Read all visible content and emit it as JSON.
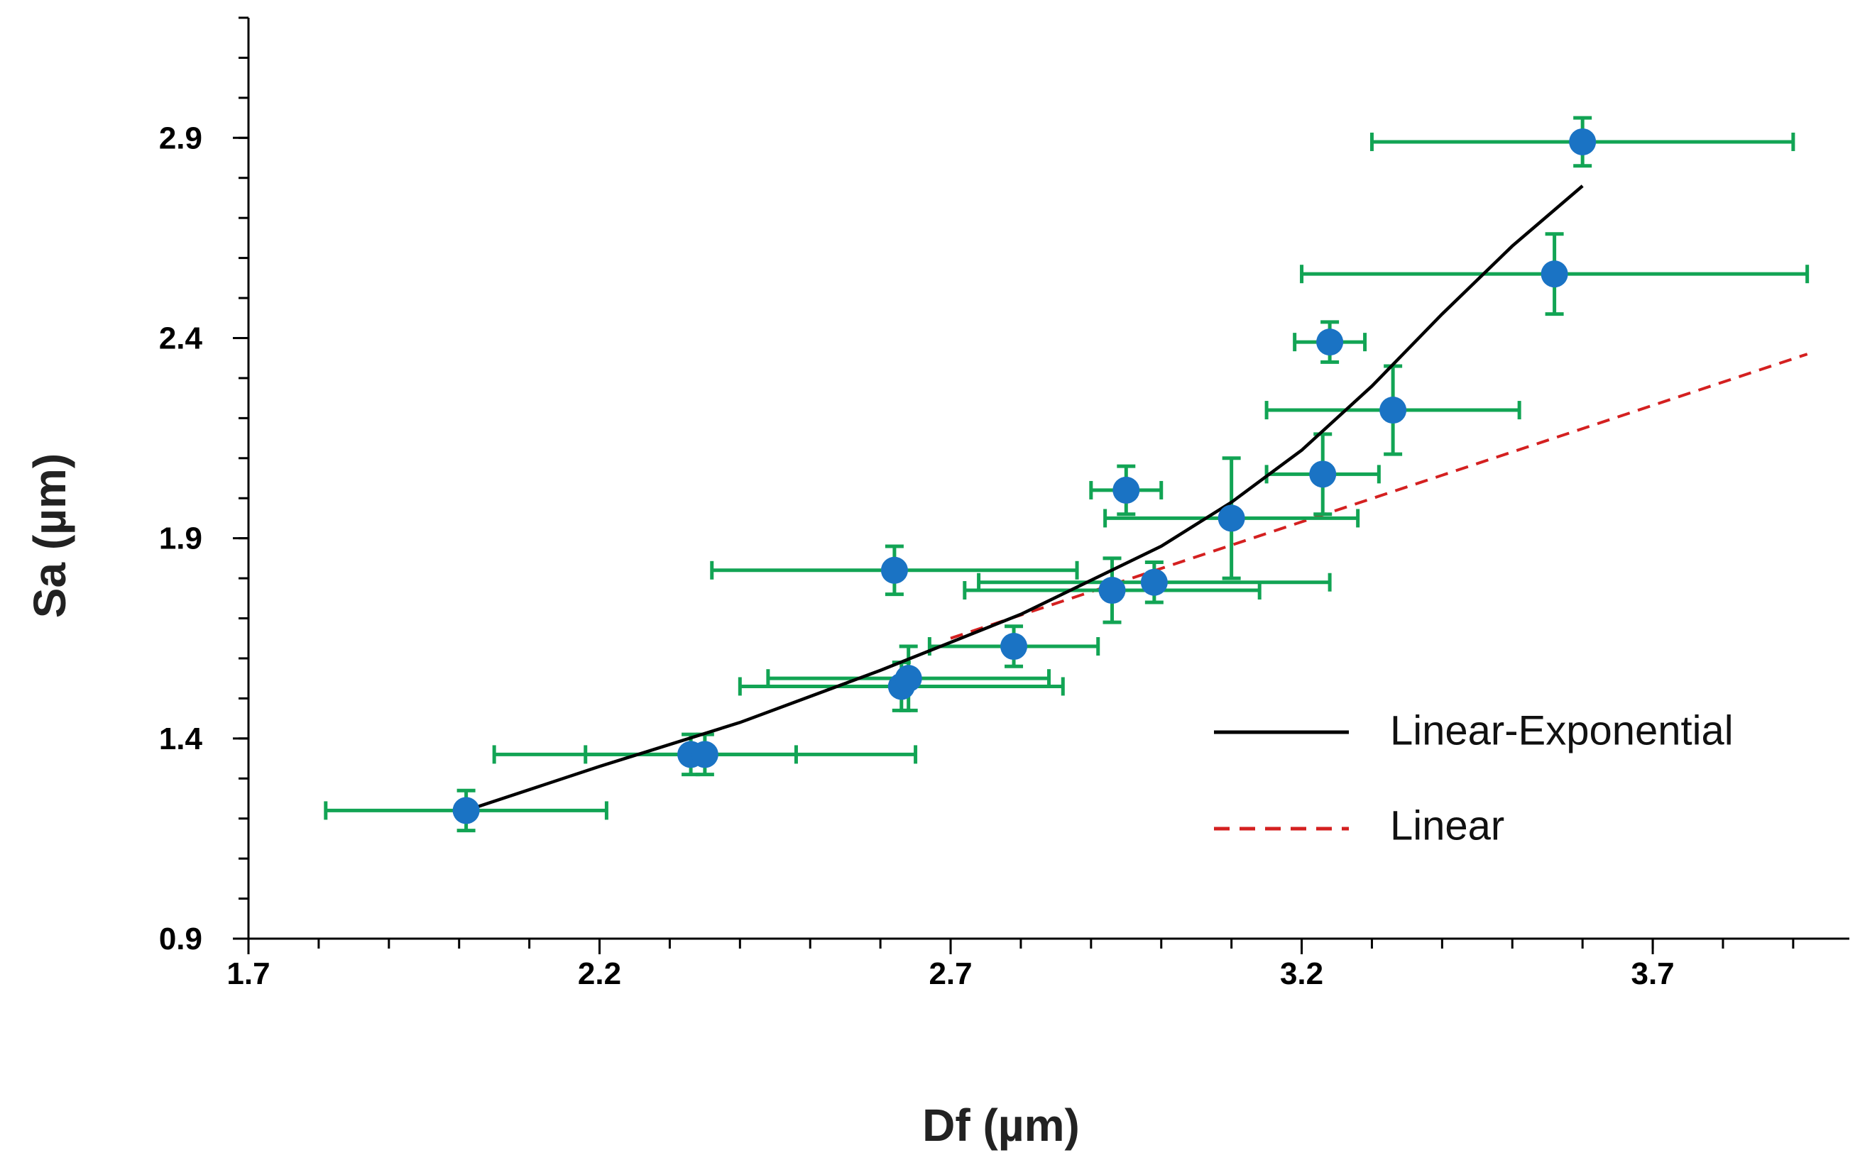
{
  "chart_data": {
    "type": "scatter",
    "title": "",
    "xlabel": "Df (µm)",
    "ylabel": "Sa (µm)",
    "xlim": [
      1.7,
      3.98
    ],
    "ylim": [
      0.9,
      3.2
    ],
    "x_ticks": [
      1.7,
      2.2,
      2.7,
      3.2,
      3.7
    ],
    "x_tick_labels": [
      "1.7",
      "2.2",
      "2.7",
      "3.2",
      "3.7"
    ],
    "y_ticks": [
      0.9,
      1.4,
      1.9,
      2.4,
      2.9
    ],
    "y_tick_labels": [
      "0.9",
      "1.4",
      "1.9",
      "2.4",
      "2.9"
    ],
    "x_minor_step": 0.1,
    "y_minor_step": 0.1,
    "grid": false,
    "legend_position": "bottom-right",
    "colors": {
      "points": "#1a73c4",
      "error_bars": "#12a454",
      "linear_exponential": "#000000",
      "linear": "#d42020"
    },
    "points": [
      {
        "x": 2.01,
        "y": 1.22,
        "xerr": 0.2,
        "yerr": 0.05
      },
      {
        "x": 2.33,
        "y": 1.36,
        "xerr": 0.15,
        "yerr": 0.05
      },
      {
        "x": 2.35,
        "y": 1.36,
        "xerr": 0.3,
        "yerr": 0.05
      },
      {
        "x": 2.63,
        "y": 1.53,
        "xerr": 0.23,
        "yerr": 0.06
      },
      {
        "x": 2.64,
        "y": 1.55,
        "xerr": 0.2,
        "yerr": 0.08
      },
      {
        "x": 2.62,
        "y": 1.82,
        "xerr": 0.26,
        "yerr": 0.06
      },
      {
        "x": 2.79,
        "y": 1.63,
        "xerr": 0.12,
        "yerr": 0.05
      },
      {
        "x": 2.93,
        "y": 1.77,
        "xerr": 0.21,
        "yerr": 0.08
      },
      {
        "x": 2.99,
        "y": 1.79,
        "xerr": 0.25,
        "yerr": 0.05
      },
      {
        "x": 2.95,
        "y": 2.02,
        "xerr": 0.05,
        "yerr": 0.06
      },
      {
        "x": 3.1,
        "y": 1.95,
        "xerr": 0.18,
        "yerr": 0.15
      },
      {
        "x": 3.23,
        "y": 2.06,
        "xerr": 0.08,
        "yerr": 0.1
      },
      {
        "x": 3.24,
        "y": 2.39,
        "xerr": 0.05,
        "yerr": 0.05
      },
      {
        "x": 3.33,
        "y": 2.22,
        "xerr": 0.18,
        "yerr": 0.11
      },
      {
        "x": 3.56,
        "y": 2.56,
        "xerr": 0.36,
        "yerr": 0.1
      },
      {
        "x": 3.6,
        "y": 2.89,
        "xerr": 0.3,
        "yerr": 0.06
      }
    ],
    "series": [
      {
        "name": "Linear-Exponential",
        "style": "solid",
        "x": [
          2.01,
          2.2,
          2.4,
          2.6,
          2.8,
          3.0,
          3.1,
          3.2,
          3.3,
          3.4,
          3.5,
          3.6
        ],
        "y": [
          1.22,
          1.33,
          1.44,
          1.57,
          1.71,
          1.88,
          1.99,
          2.12,
          2.28,
          2.46,
          2.63,
          2.78
        ]
      },
      {
        "name": "Linear",
        "style": "dashed",
        "x": [
          2.7,
          3.92
        ],
        "y": [
          1.65,
          2.36
        ]
      }
    ]
  }
}
